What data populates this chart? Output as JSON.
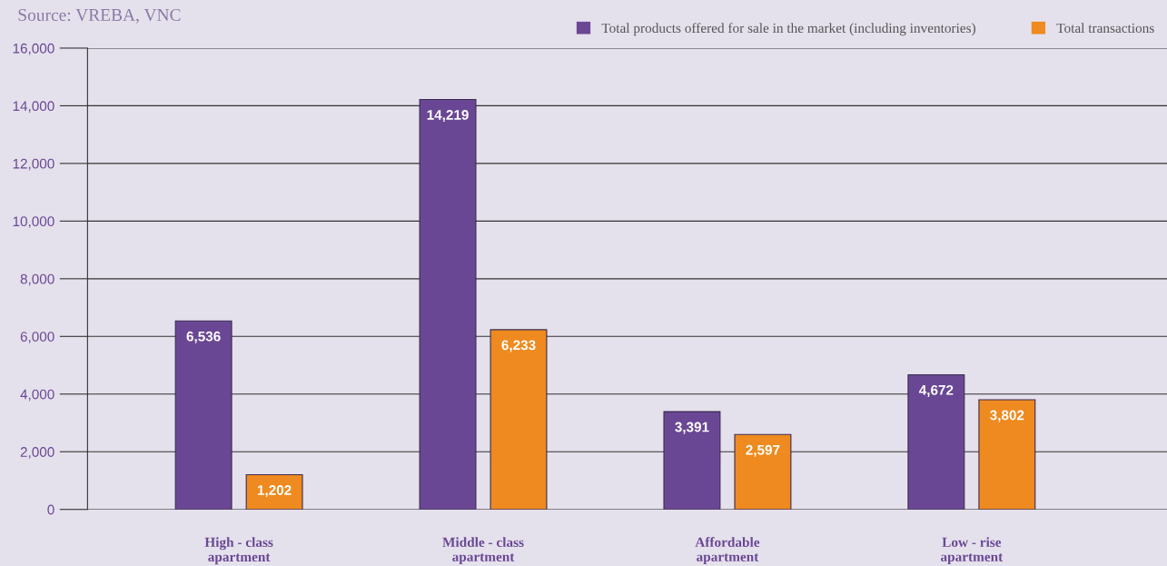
{
  "chart_data": {
    "type": "bar",
    "categories": [
      "High - class\napartment",
      "Middle - class\napartment",
      "Affordable\napartment",
      "Low - rise\napartment"
    ],
    "series": [
      {
        "name": "Total products offered for sale in the market (including inventories)",
        "color": "#6a4794",
        "values": [
          6536,
          14219,
          3391,
          4672
        ],
        "value_labels": [
          "6,536",
          "14,219",
          "3,391",
          "4,672"
        ]
      },
      {
        "name": "Total transactions",
        "color": "#ee8a1f",
        "values": [
          1202,
          6233,
          2597,
          3802
        ],
        "value_labels": [
          "1,202",
          "6,233",
          "2,597",
          "3,802"
        ]
      }
    ],
    "ylim": [
      0,
      16000
    ],
    "yticks": [
      {
        "value": 0,
        "label": "0"
      },
      {
        "value": 2000,
        "label": "2,000"
      },
      {
        "value": 4000,
        "label": "4,000"
      },
      {
        "value": 6000,
        "label": "6,000"
      },
      {
        "value": 8000,
        "label": "8,000"
      },
      {
        "value": 10000,
        "label": "10,000"
      },
      {
        "value": 12000,
        "label": "12,000"
      },
      {
        "value": 14000,
        "label": "14,000"
      },
      {
        "value": 16000,
        "label": "16,000"
      }
    ],
    "grid": "y",
    "legend": "top right",
    "annotations": [
      "Source: VREBA, VNC"
    ]
  }
}
